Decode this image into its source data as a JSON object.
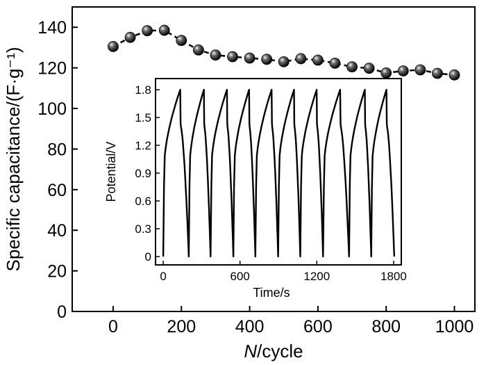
{
  "chart_data": [
    {
      "type": "line",
      "role": "main",
      "title": "",
      "xlabel": {
        "italic": "N",
        "rest": "/cycle"
      },
      "ylabel": "Specific capacitance/(F·g⁻¹)",
      "xlim": [
        -120,
        1060
      ],
      "ylim": [
        0,
        150
      ],
      "xticks": [
        0,
        200,
        400,
        600,
        800,
        1000
      ],
      "yticks": [
        0,
        20,
        40,
        60,
        80,
        100,
        120,
        140
      ],
      "series": [
        {
          "name": "specific capacitance",
          "marker": "sphere",
          "line": "dashed",
          "x": [
            0,
            50,
            100,
            150,
            200,
            250,
            300,
            350,
            400,
            450,
            500,
            550,
            600,
            650,
            700,
            750,
            800,
            850,
            900,
            950,
            1000
          ],
          "y": [
            130.5,
            135,
            138.3,
            138.5,
            133.5,
            128.8,
            126.3,
            125.5,
            124.8,
            124.2,
            123,
            124.5,
            123.8,
            122.3,
            120.5,
            119.8,
            117.5,
            118.5,
            119,
            117.3,
            116.5
          ]
        }
      ]
    },
    {
      "type": "line",
      "role": "inset",
      "title": "",
      "xlabel": "Time/s",
      "ylabel": "Potential/V",
      "xlim": [
        -60,
        1860
      ],
      "ylim": [
        -0.09,
        1.92
      ],
      "xticks": [
        0,
        600,
        1200,
        1800
      ],
      "yticks": [
        0,
        0.3,
        0.6,
        0.9,
        1.2,
        1.5,
        1.8
      ],
      "ytick_labels": [
        "0",
        "0.3",
        "0.6",
        "0.9",
        "1.2",
        "1.5",
        "1.8"
      ],
      "series": [
        {
          "name": "galvanostatic charge-discharge",
          "cycles": 10,
          "cycle_start_times": [
            0,
            200,
            370,
            548,
            720,
            898,
            1071,
            1249,
            1452,
            1625
          ],
          "charge_end_times": [
            133,
            318,
            498,
            671,
            847,
            1022,
            1199,
            1382,
            1575,
            1744
          ],
          "discharge_end_times": [
            200,
            370,
            548,
            720,
            898,
            1071,
            1249,
            1452,
            1625,
            1805
          ],
          "v_min": 0,
          "v_max": 1.8
        }
      ]
    }
  ]
}
